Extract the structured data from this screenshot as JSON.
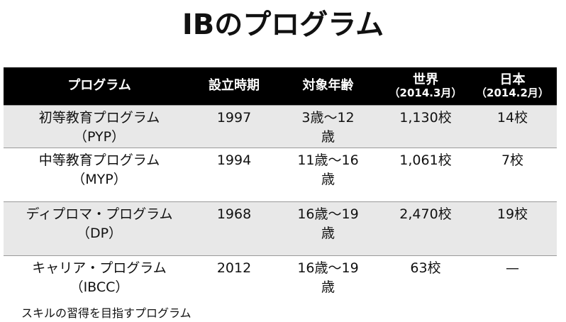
{
  "title": "IBのプログラム",
  "table": {
    "header": [
      {
        "text": "プログラム"
      },
      {
        "text": "設立時期"
      },
      {
        "text": "対象年齢"
      },
      {
        "text": "世界",
        "sub": "（2014.3月）"
      },
      {
        "text": "日本",
        "sub": "（2014.2月）"
      }
    ],
    "rows": [
      [
        [
          "初等教育プログラム",
          "（PYP）"
        ],
        "1997",
        "3歳～12歳",
        "1,130校",
        "14校"
      ],
      [
        [
          "中等教育プログラム",
          "（MYP）"
        ],
        "1994",
        "11歳～16歳",
        "1,061校",
        "7校"
      ],
      [
        [
          "ディプロマ・プログラム",
          "（DP）"
        ],
        "1968",
        "16歳～19歳",
        "2,470校",
        "19校"
      ],
      [
        [
          "キャリア・プログラム",
          "（IBCC）"
        ],
        "2012",
        "16歳～19歳",
        "63校",
        "—"
      ]
    ]
  },
  "footer": "スキルの習得を目指すプログラム"
}
